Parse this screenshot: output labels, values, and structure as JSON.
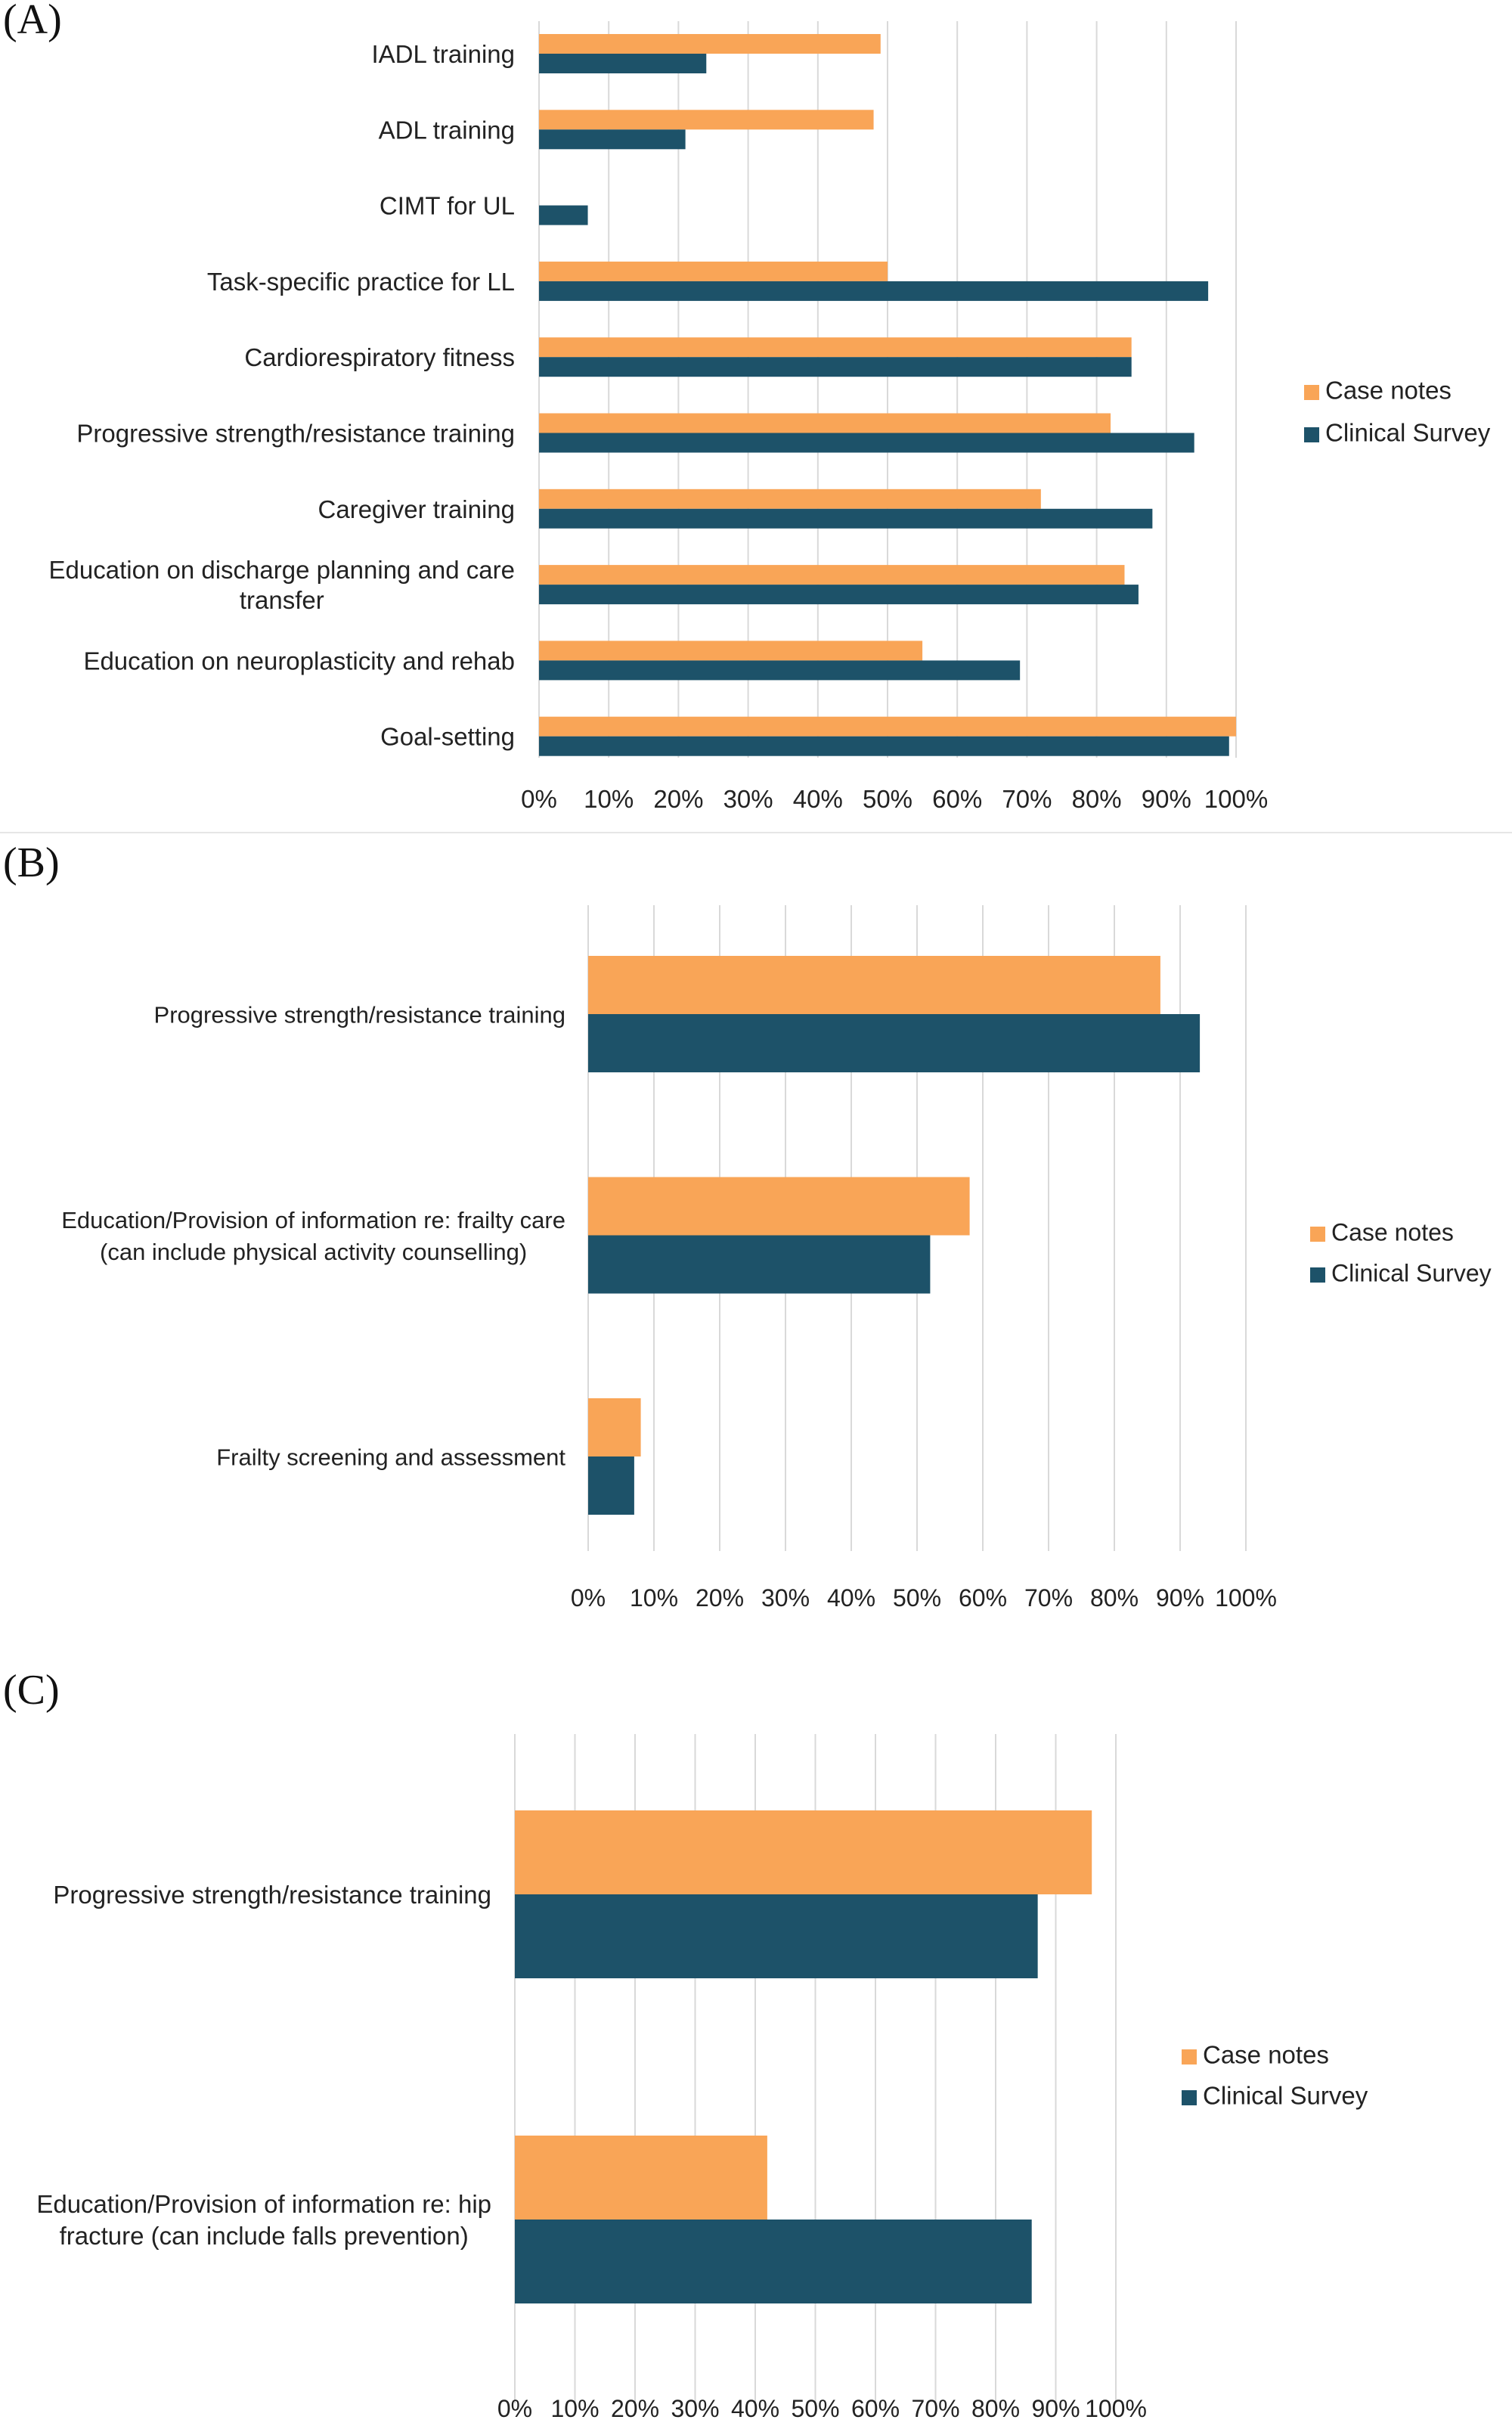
{
  "colors": {
    "case_notes": "#F9A557",
    "clinical_survey": "#1D5269",
    "grid": "#D9D9D9",
    "text": "#222222"
  },
  "chart_data": [
    {
      "type": "bar",
      "orientation": "horizontal",
      "panel_label": "(A)",
      "categories": [
        "IADL training",
        "ADL training",
        "CIMT for UL",
        "Task-specific practice for LL",
        "Cardiorespiratory fitness",
        "Progressive strength/resistance training",
        "Caregiver training",
        "Education on discharge planning and care transfer",
        "Education on neuroplasticity and rehab",
        "Goal-setting"
      ],
      "category_lines": [
        [
          "IADL training"
        ],
        [
          "ADL training"
        ],
        [
          "CIMT for UL"
        ],
        [
          "Task-specific practice for LL"
        ],
        [
          "Cardiorespiratory fitness"
        ],
        [
          "Progressive strength/resistance training"
        ],
        [
          "Caregiver training"
        ],
        [
          "Education on discharge planning and care",
          "transfer"
        ],
        [
          "Education on neuroplasticity and rehab"
        ],
        [
          "Goal-setting"
        ]
      ],
      "series": [
        {
          "name": "Case notes",
          "values": [
            49,
            48,
            0,
            50,
            85,
            82,
            72,
            84,
            55,
            100
          ]
        },
        {
          "name": "Clinical Survey",
          "values": [
            24,
            21,
            7,
            96,
            85,
            94,
            88,
            86,
            69,
            99
          ]
        }
      ],
      "xlim": [
        0,
        100
      ],
      "ticks": [
        "0%",
        "10%",
        "20%",
        "30%",
        "40%",
        "50%",
        "60%",
        "70%",
        "80%",
        "90%",
        "100%"
      ],
      "grid": true,
      "legend": "right"
    },
    {
      "type": "bar",
      "orientation": "horizontal",
      "panel_label": "(B)",
      "categories": [
        "Progressive strength/resistance training",
        "Education/Provision of information re: frailty care (can include physical activity counselling)",
        "Frailty screening and assessment"
      ],
      "category_lines": [
        [
          "Progressive strength/resistance training"
        ],
        [
          "Education/Provision of information re: frailty care",
          "(can include physical activity counselling)"
        ],
        [
          "Frailty screening and assessment"
        ]
      ],
      "series": [
        {
          "name": "Case notes",
          "values": [
            87,
            58,
            8
          ]
        },
        {
          "name": "Clinical Survey",
          "values": [
            93,
            52,
            7
          ]
        }
      ],
      "xlim": [
        0,
        100
      ],
      "ticks": [
        "0%",
        "10%",
        "20%",
        "30%",
        "40%",
        "50%",
        "60%",
        "70%",
        "80%",
        "90%",
        "100%"
      ],
      "grid": true,
      "legend": "right"
    },
    {
      "type": "bar",
      "orientation": "horizontal",
      "panel_label": "(C)",
      "categories": [
        "Progressive strength/resistance training",
        "Education/Provision of information re: hip fracture (can include falls prevention)"
      ],
      "category_lines": [
        [
          "Progressive strength/resistance training"
        ],
        [
          "Education/Provision of information re: hip",
          "fracture (can include falls prevention)"
        ]
      ],
      "series": [
        {
          "name": "Case notes",
          "values": [
            96,
            42
          ]
        },
        {
          "name": "Clinical Survey",
          "values": [
            87,
            86
          ]
        }
      ],
      "xlim": [
        0,
        100
      ],
      "ticks": [
        "0%",
        "10%",
        "20%",
        "30%",
        "40%",
        "50%",
        "60%",
        "70%",
        "80%",
        "90%",
        "100%"
      ],
      "grid": true,
      "legend": "right"
    }
  ]
}
